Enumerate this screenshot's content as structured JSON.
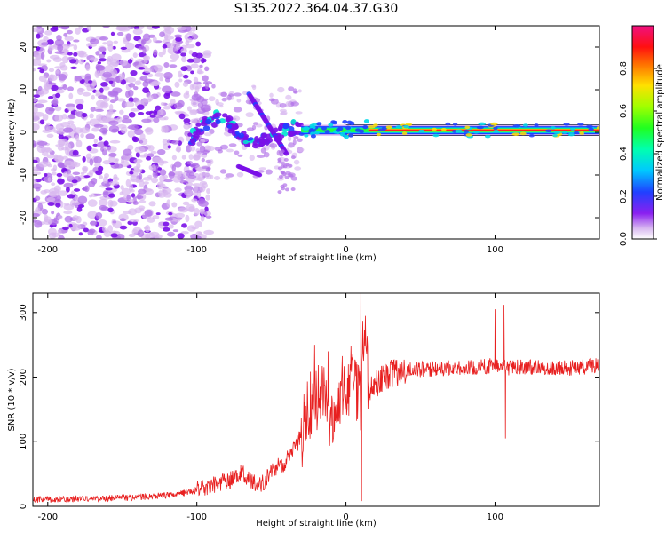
{
  "title": "S135.2022.364.04.37.G30",
  "colors": {
    "snr_line": "#e82020",
    "scatter_light": "#d8b8f0",
    "scatter_mid": "#b070e8",
    "scatter_dark": "#7a10e8"
  },
  "chart_data": [
    {
      "type": "heatmap",
      "xlabel": "Height of straight line (km)",
      "ylabel": "Frequency (Hz)",
      "xlim": [
        -210,
        170
      ],
      "ylim": [
        -25,
        25
      ],
      "xticks": [
        -200,
        -100,
        0,
        100
      ],
      "yticks": [
        -20,
        -10,
        0,
        10,
        20
      ],
      "colorbar": {
        "label": "Normalized spectral amplitude",
        "range": [
          0.0,
          1.0
        ],
        "ticks": [
          0.0,
          0.2,
          0.4,
          0.6,
          0.8
        ],
        "colormap": "hsv-like (violet-blue-cyan-green-yellow-red-magenta)"
      },
      "features": {
        "noise_region_x": [
          -210,
          -100
        ],
        "transition_region_x": [
          -105,
          -30
        ],
        "strong_signal_x": [
          -30,
          170
        ],
        "strong_signal_frequency_hz": 0.5,
        "branch_upper_start": [
          -65,
          9
        ],
        "branch_upper_end": [
          -40,
          -5
        ],
        "branch_lower_start": [
          -72,
          -8
        ],
        "branch_lower_end": [
          -58,
          -10
        ]
      }
    },
    {
      "type": "line",
      "xlabel": "Height of straight line (km)",
      "ylabel": "SNR (10 * v/v)",
      "xlim": [
        -210,
        170
      ],
      "ylim": [
        0,
        330
      ],
      "xticks": [
        -200,
        -100,
        0,
        100
      ],
      "yticks": [
        0,
        100,
        200,
        300
      ],
      "series": [
        {
          "x": [
            -210,
            -180,
            -150,
            -130,
            -110,
            -100,
            -90,
            -80,
            -75,
            -70,
            -65,
            -60,
            -55,
            -50,
            -45,
            -40,
            -35,
            -30,
            -25,
            -20,
            -15,
            -10,
            -5,
            0,
            5,
            10,
            12,
            15,
            20,
            30,
            40,
            50,
            60,
            70,
            80,
            90,
            100,
            105,
            110,
            120,
            130,
            140,
            150,
            160,
            170
          ],
          "values": [
            10,
            12,
            13,
            15,
            20,
            25,
            32,
            38,
            45,
            55,
            42,
            32,
            38,
            55,
            62,
            70,
            88,
            110,
            150,
            165,
            180,
            130,
            175,
            190,
            200,
            150,
            290,
            180,
            190,
            205,
            210,
            212,
            213,
            214,
            215,
            216,
            218,
            215,
            214,
            216,
            215,
            215,
            214,
            216,
            218
          ],
          "spikes": [
            {
              "x": -21,
              "value": 250
            },
            {
              "x": -12,
              "value": 240
            },
            {
              "x": 10,
              "value": 330
            },
            {
              "x": 10.5,
              "value": 8
            },
            {
              "x": 100,
              "value": 305
            },
            {
              "x": 106,
              "value": 312
            },
            {
              "x": 107,
              "value": 105
            }
          ]
        }
      ]
    }
  ]
}
